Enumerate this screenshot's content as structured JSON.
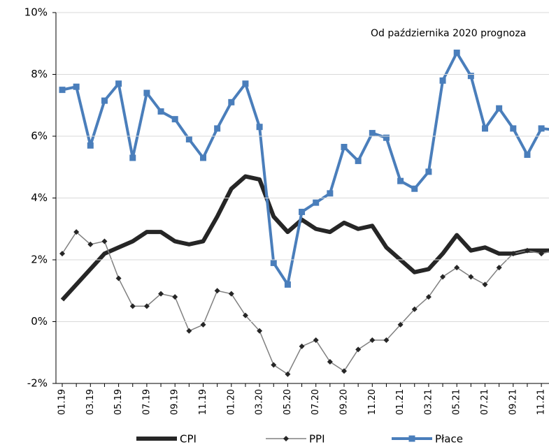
{
  "chart_data": {
    "type": "line",
    "annotation": "Od października 2020 prognoza",
    "categories": [
      "01.19",
      null,
      "03.19",
      null,
      "05.19",
      null,
      "07.19",
      null,
      "09.19",
      null,
      "11.19",
      null,
      "01.20",
      null,
      "03.20",
      null,
      "05.20",
      null,
      "07.20",
      null,
      "09.20",
      null,
      "11.20",
      null,
      "01.21",
      null,
      "03.21",
      null,
      "05.21",
      null,
      "07.21",
      null,
      "09.21",
      null,
      "11.21",
      null
    ],
    "series": [
      {
        "name": "CPI",
        "color": "#262626",
        "values": [
          0.7,
          1.2,
          1.7,
          2.2,
          2.4,
          2.6,
          2.9,
          2.9,
          2.6,
          2.5,
          2.6,
          3.4,
          4.3,
          4.7,
          4.6,
          3.4,
          2.9,
          3.3,
          3.0,
          2.9,
          3.2,
          3.0,
          3.1,
          2.4,
          2.0,
          1.6,
          1.7,
          2.2,
          2.8,
          2.3,
          2.4,
          2.2,
          2.2,
          2.3,
          2.3,
          2.3
        ]
      },
      {
        "name": "PPI",
        "color": "#808080",
        "values": [
          2.2,
          2.9,
          2.5,
          2.6,
          1.4,
          0.5,
          0.5,
          0.9,
          0.8,
          -0.3,
          -0.1,
          1.0,
          0.9,
          0.2,
          -0.3,
          -1.4,
          -1.7,
          -0.8,
          -0.6,
          -1.3,
          -1.6,
          -0.9,
          -0.6,
          -0.6,
          -0.1,
          0.4,
          0.8,
          1.45,
          1.75,
          1.45,
          1.2,
          1.75,
          2.2,
          2.3,
          2.2,
          2.3
        ]
      },
      {
        "name": "Płace",
        "color": "#4a7ebb",
        "values": [
          7.5,
          7.6,
          5.7,
          7.15,
          7.7,
          5.3,
          7.4,
          6.8,
          6.55,
          5.9,
          5.3,
          6.25,
          7.1,
          7.7,
          6.3,
          1.9,
          1.2,
          3.55,
          3.85,
          4.15,
          5.65,
          5.2,
          6.1,
          5.95,
          4.55,
          4.3,
          4.85,
          7.8,
          8.7,
          7.95,
          6.25,
          6.9,
          6.25,
          5.4,
          6.25,
          6.2
        ]
      }
    ],
    "ylim": [
      -2,
      10
    ],
    "yticks": [
      {
        "value": -2,
        "label": "-2%"
      },
      {
        "value": 0,
        "label": "0%"
      },
      {
        "value": 2,
        "label": "2%"
      },
      {
        "value": 4,
        "label": "4%"
      },
      {
        "value": 6,
        "label": "6%"
      },
      {
        "value": 8,
        "label": "8%"
      },
      {
        "value": 10,
        "label": "10%"
      }
    ],
    "grid": true
  }
}
